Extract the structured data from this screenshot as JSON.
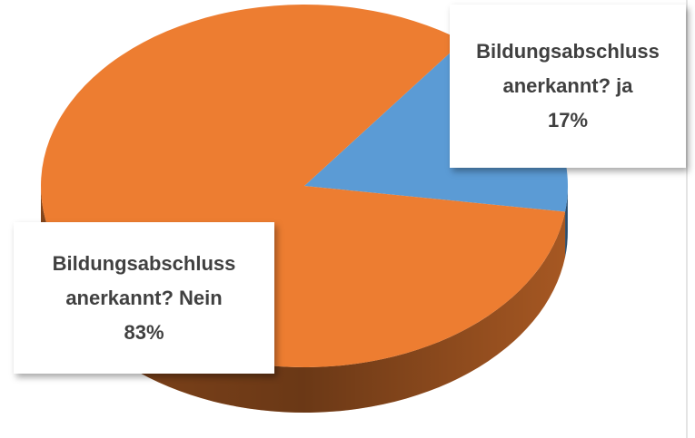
{
  "chart_data": {
    "type": "pie",
    "categories": [
      "Bildungsabschluss anerkannt? ja",
      "Bildungsabschluss anerkannt? Nein"
    ],
    "values": [
      17,
      83
    ],
    "value_labels": [
      "17%",
      "83%"
    ],
    "colors": [
      "#5b9bd5",
      "#ed7d31"
    ]
  }
}
